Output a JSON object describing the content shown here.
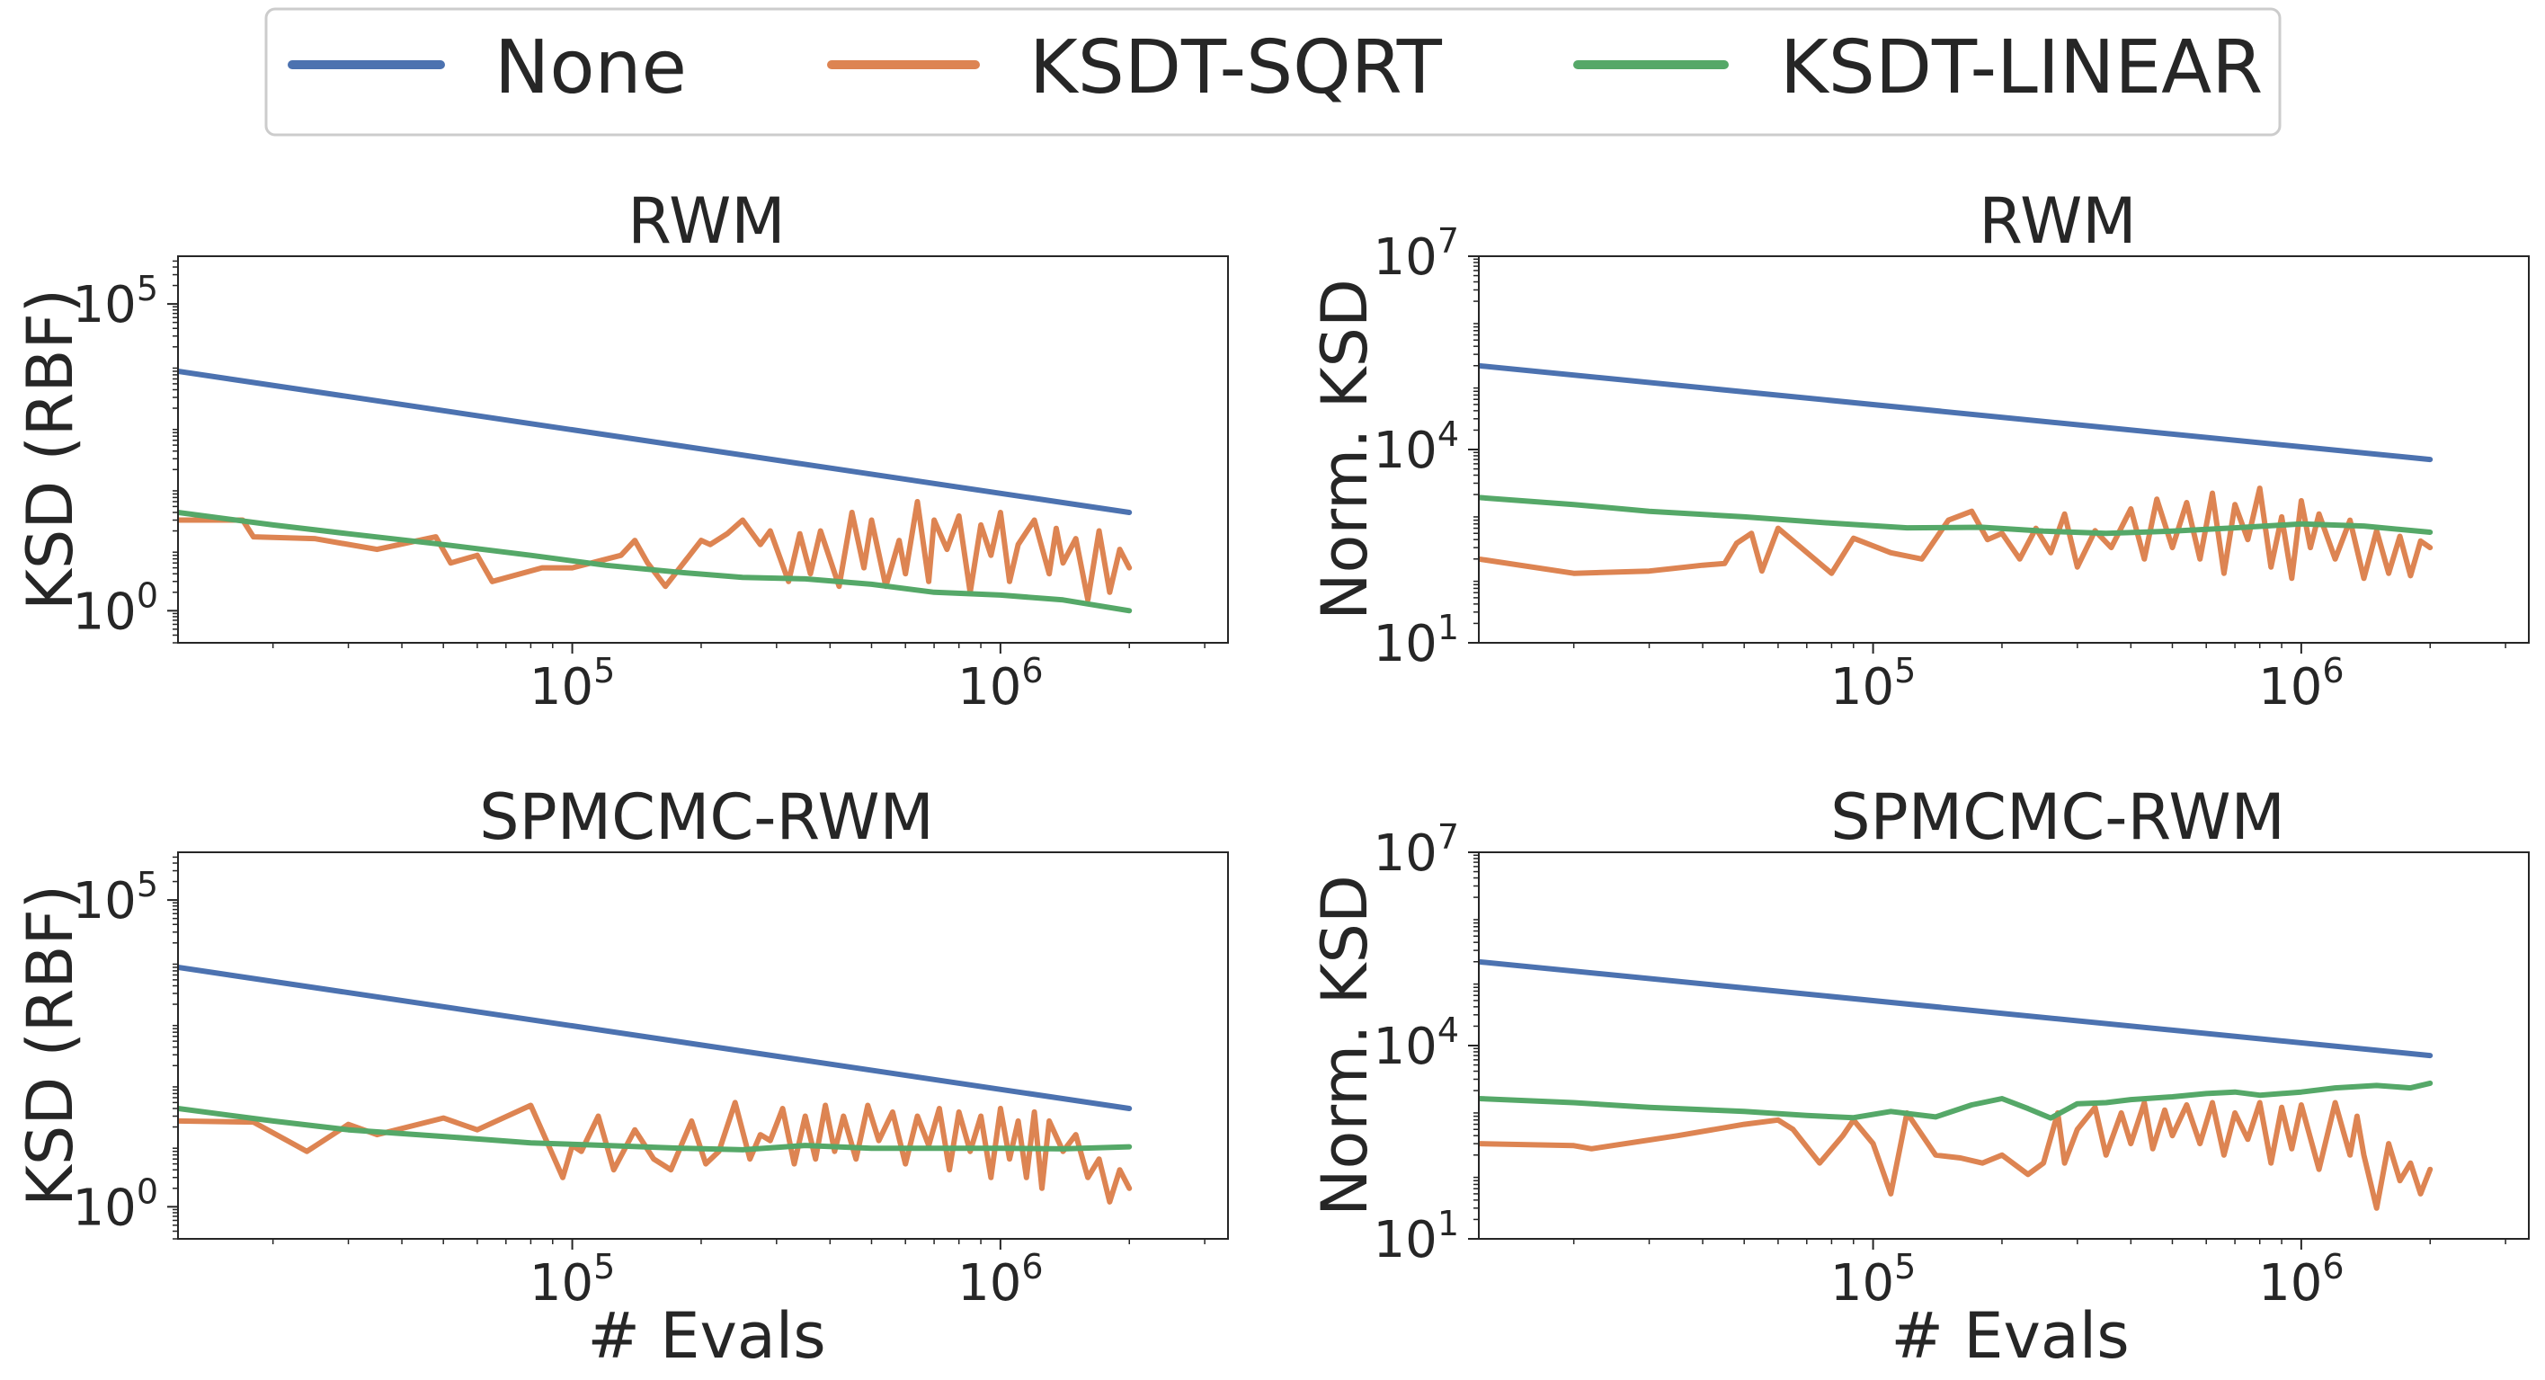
{
  "colors": {
    "None": "#4c72b0",
    "KSDT-SQRT": "#dd8452",
    "KSDT-LINEAR": "#55a868",
    "axis": "#262626",
    "legend_border": "#cccccc"
  },
  "legend": {
    "entries": [
      "None",
      "KSDT-SQRT",
      "KSDT-LINEAR"
    ],
    "placement": "top-center"
  },
  "chart_data": [
    {
      "type": "line",
      "id": "rwm-rbf",
      "title": "RWM",
      "xlabel": "",
      "ylabel": "KSD (RBF)",
      "xscale": "log",
      "yscale": "log",
      "xlim": [
        12000,
        3400000
      ],
      "ylim": [
        0.3,
        600000
      ],
      "xticks": [
        {
          "base": "10",
          "exp": "5",
          "value": 100000
        },
        {
          "base": "10",
          "exp": "6",
          "value": 1000000
        }
      ],
      "yticks": [
        {
          "base": "10",
          "exp": "0",
          "value": 1
        },
        {
          "base": "10",
          "exp": "5",
          "value": 100000
        }
      ],
      "series": [
        {
          "name": "None",
          "x": [
            12000,
            2000000
          ],
          "y": [
            8000,
            40
          ]
        },
        {
          "name": "KSDT-LINEAR",
          "x": [
            12000,
            20000,
            30000,
            50000,
            80000,
            120000,
            180000,
            250000,
            350000,
            500000,
            700000,
            1000000,
            1400000,
            2000000
          ],
          "y": [
            40,
            25,
            18,
            12,
            8,
            5.5,
            4.2,
            3.5,
            3.3,
            2.7,
            2.0,
            1.8,
            1.5,
            1.0
          ]
        },
        {
          "name": "KSDT-SQRT",
          "x": [
            12000,
            17000,
            18000,
            25000,
            35000,
            48000,
            52000,
            60000,
            65000,
            85000,
            100000,
            130000,
            140000,
            150000,
            165000,
            200000,
            210000,
            230000,
            250000,
            275000,
            290000,
            320000,
            340000,
            360000,
            380000,
            420000,
            450000,
            480000,
            500000,
            540000,
            580000,
            600000,
            640000,
            680000,
            700000,
            750000,
            800000,
            850000,
            900000,
            950000,
            1000000,
            1050000,
            1100000,
            1200000,
            1300000,
            1350000,
            1400000,
            1500000,
            1600000,
            1700000,
            1800000,
            1900000,
            2000000
          ],
          "y": [
            30,
            30,
            16,
            15,
            10,
            16,
            6,
            8,
            3,
            5,
            5,
            8,
            14,
            6,
            2.5,
            14,
            12,
            18,
            30,
            12,
            20,
            3,
            18,
            4,
            20,
            2.5,
            40,
            5,
            30,
            2.5,
            14,
            4,
            60,
            3,
            30,
            10,
            35,
            2,
            25,
            8,
            40,
            3,
            12,
            30,
            4,
            22,
            6,
            15,
            1.5,
            20,
            2,
            10,
            5
          ]
        }
      ]
    },
    {
      "type": "line",
      "id": "rwm-norm",
      "title": "RWM",
      "xlabel": "",
      "ylabel": "Norm. KSD",
      "xscale": "log",
      "yscale": "log",
      "xlim": [
        12000,
        3400000
      ],
      "ylim": [
        10,
        10000000
      ],
      "xticks": [
        {
          "base": "10",
          "exp": "5",
          "value": 100000
        },
        {
          "base": "10",
          "exp": "6",
          "value": 1000000
        }
      ],
      "yticks": [
        {
          "base": "10",
          "exp": "1",
          "value": 10
        },
        {
          "base": "10",
          "exp": "4",
          "value": 10000
        },
        {
          "base": "10",
          "exp": "7",
          "value": 10000000
        }
      ],
      "series": [
        {
          "name": "None",
          "x": [
            12000,
            2000000
          ],
          "y": [
            200000,
            7000
          ]
        },
        {
          "name": "KSDT-LINEAR",
          "x": [
            12000,
            20000,
            30000,
            50000,
            80000,
            120000,
            180000,
            250000,
            350000,
            500000,
            700000,
            1000000,
            1400000,
            2000000
          ],
          "y": [
            1800,
            1400,
            1100,
            900,
            720,
            610,
            620,
            540,
            500,
            540,
            610,
            700,
            650,
            520
          ]
        },
        {
          "name": "KSDT-SQRT",
          "x": [
            12000,
            20000,
            30000,
            40000,
            45000,
            48000,
            52000,
            55000,
            60000,
            80000,
            90000,
            110000,
            130000,
            150000,
            170000,
            185000,
            200000,
            220000,
            240000,
            260000,
            280000,
            300000,
            330000,
            360000,
            400000,
            430000,
            460000,
            500000,
            540000,
            580000,
            620000,
            660000,
            700000,
            750000,
            800000,
            850000,
            900000,
            950000,
            1000000,
            1050000,
            1100000,
            1200000,
            1300000,
            1400000,
            1500000,
            1600000,
            1700000,
            1800000,
            1900000,
            2000000
          ],
          "y": [
            200,
            120,
            130,
            160,
            170,
            350,
            500,
            130,
            600,
            120,
            420,
            250,
            200,
            800,
            1100,
            400,
            500,
            200,
            600,
            250,
            1000,
            150,
            550,
            300,
            1200,
            200,
            1700,
            300,
            1500,
            200,
            2100,
            120,
            1400,
            400,
            2500,
            150,
            900,
            100,
            1600,
            300,
            1000,
            200,
            800,
            100,
            550,
            120,
            450,
            110,
            380,
            300
          ]
        }
      ]
    },
    {
      "type": "line",
      "id": "spmcmc-rbf",
      "title": "SPMCMC-RWM",
      "xlabel": "# Evals",
      "ylabel": "KSD (RBF)",
      "xscale": "log",
      "yscale": "log",
      "xlim": [
        12000,
        3400000
      ],
      "ylim": [
        0.3,
        600000
      ],
      "xticks": [
        {
          "base": "10",
          "exp": "5",
          "value": 100000
        },
        {
          "base": "10",
          "exp": "6",
          "value": 1000000
        }
      ],
      "yticks": [
        {
          "base": "10",
          "exp": "0",
          "value": 1
        },
        {
          "base": "10",
          "exp": "5",
          "value": 100000
        }
      ],
      "series": [
        {
          "name": "None",
          "x": [
            12000,
            2000000
          ],
          "y": [
            8000,
            40
          ]
        },
        {
          "name": "KSDT-LINEAR",
          "x": [
            12000,
            20000,
            30000,
            50000,
            80000,
            120000,
            180000,
            250000,
            350000,
            500000,
            700000,
            1000000,
            1400000,
            2000000
          ],
          "y": [
            40,
            25,
            18,
            14,
            11,
            10,
            9,
            8.5,
            10,
            9,
            9,
            9,
            8.8,
            9.5
          ]
        },
        {
          "name": "KSDT-SQRT",
          "x": [
            12000,
            18000,
            24000,
            30000,
            35000,
            50000,
            60000,
            80000,
            95000,
            100000,
            105000,
            115000,
            125000,
            140000,
            155000,
            170000,
            190000,
            205000,
            220000,
            240000,
            260000,
            275000,
            290000,
            310000,
            330000,
            350000,
            370000,
            390000,
            410000,
            430000,
            460000,
            490000,
            520000,
            560000,
            600000,
            640000,
            680000,
            720000,
            760000,
            800000,
            850000,
            900000,
            950000,
            1000000,
            1050000,
            1100000,
            1150000,
            1200000,
            1250000,
            1300000,
            1400000,
            1500000,
            1600000,
            1700000,
            1800000,
            1900000,
            2000000
          ],
          "y": [
            25,
            24,
            8,
            22,
            15,
            28,
            18,
            45,
            3,
            10,
            8,
            30,
            4,
            18,
            6,
            4,
            25,
            5,
            8,
            50,
            6,
            15,
            12,
            40,
            5,
            30,
            6,
            45,
            8,
            30,
            6,
            45,
            12,
            35,
            5,
            30,
            10,
            40,
            4,
            35,
            8,
            30,
            3,
            40,
            6,
            25,
            3,
            35,
            2,
            25,
            8,
            15,
            3,
            6,
            1.2,
            4,
            2
          ]
        }
      ]
    },
    {
      "type": "line",
      "id": "spmcmc-norm",
      "title": "SPMCMC-RWM",
      "xlabel": "# Evals",
      "ylabel": "Norm. KSD",
      "xscale": "log",
      "yscale": "log",
      "xlim": [
        12000,
        3400000
      ],
      "ylim": [
        10,
        10000000
      ],
      "xticks": [
        {
          "base": "10",
          "exp": "5",
          "value": 100000
        },
        {
          "base": "10",
          "exp": "6",
          "value": 1000000
        }
      ],
      "yticks": [
        {
          "base": "10",
          "exp": "1",
          "value": 10
        },
        {
          "base": "10",
          "exp": "4",
          "value": 10000
        },
        {
          "base": "10",
          "exp": "7",
          "value": 10000000
        }
      ],
      "series": [
        {
          "name": "None",
          "x": [
            12000,
            2000000
          ],
          "y": [
            200000,
            7000
          ]
        },
        {
          "name": "KSDT-LINEAR",
          "x": [
            12000,
            20000,
            30000,
            50000,
            70000,
            90000,
            110000,
            140000,
            170000,
            200000,
            230000,
            260000,
            300000,
            350000,
            400000,
            500000,
            600000,
            700000,
            800000,
            1000000,
            1200000,
            1500000,
            1800000,
            2000000
          ],
          "y": [
            1500,
            1300,
            1100,
            950,
            820,
            760,
            950,
            780,
            1200,
            1500,
            1050,
            750,
            1250,
            1300,
            1450,
            1600,
            1800,
            1900,
            1700,
            1900,
            2200,
            2400,
            2200,
            2600
          ]
        },
        {
          "name": "KSDT-SQRT",
          "x": [
            12000,
            20000,
            22000,
            35000,
            50000,
            60000,
            65000,
            75000,
            85000,
            90000,
            100000,
            110000,
            120000,
            140000,
            160000,
            180000,
            200000,
            230000,
            250000,
            270000,
            280000,
            300000,
            330000,
            350000,
            380000,
            400000,
            430000,
            450000,
            480000,
            500000,
            540000,
            580000,
            620000,
            660000,
            700000,
            750000,
            800000,
            850000,
            900000,
            950000,
            1000000,
            1100000,
            1200000,
            1300000,
            1350000,
            1400000,
            1500000,
            1600000,
            1700000,
            1800000,
            1900000,
            2000000
          ],
          "y": [
            300,
            280,
            250,
            400,
            600,
            700,
            500,
            150,
            400,
            700,
            300,
            50,
            900,
            200,
            180,
            150,
            200,
            100,
            150,
            900,
            150,
            500,
            1100,
            200,
            900,
            300,
            1300,
            250,
            1000,
            400,
            1200,
            300,
            1300,
            200,
            900,
            350,
            1300,
            150,
            1100,
            250,
            1200,
            120,
            1300,
            200,
            800,
            200,
            30,
            300,
            80,
            150,
            50,
            120
          ]
        }
      ]
    }
  ]
}
